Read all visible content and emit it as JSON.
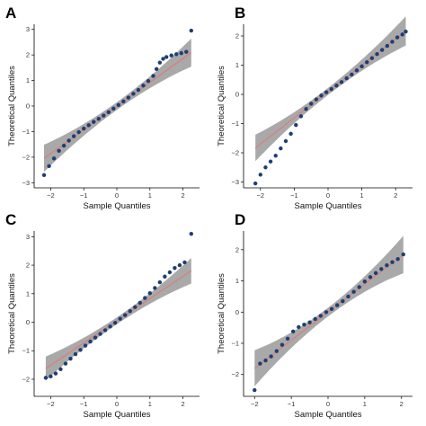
{
  "chart_data": [
    {
      "type": "scatter",
      "panel": "A",
      "xlabel": "Sample Quantiles",
      "ylabel": "Theoretical Quantiles",
      "xlim": [
        -2.5,
        2.5
      ],
      "ylim": [
        -3.2,
        3.2
      ],
      "xticks": [
        -2,
        -1,
        0,
        1,
        2
      ],
      "yticks": [
        -3,
        -2,
        -1,
        0,
        1,
        2,
        3
      ],
      "grid": false,
      "point_color": "#1c3f73",
      "line_color": "#e07a7a",
      "band_color": "#8c8c8c",
      "ref_line": {
        "slope": 0.93,
        "intercept": 0.0
      },
      "band_halfwidth": {
        "center": 0.15,
        "tails": 0.55
      },
      "x": [
        -2.2,
        -2.05,
        -1.9,
        -1.75,
        -1.6,
        -1.45,
        -1.3,
        -1.15,
        -1.0,
        -0.85,
        -0.7,
        -0.55,
        -0.4,
        -0.25,
        -0.1,
        0.05,
        0.2,
        0.35,
        0.5,
        0.65,
        0.8,
        0.95,
        1.1,
        1.2,
        1.3,
        1.4,
        1.5,
        1.65,
        1.8,
        1.95,
        2.1,
        2.25
      ],
      "y": [
        -2.7,
        -2.35,
        -2.05,
        -1.75,
        -1.55,
        -1.35,
        -1.18,
        -1.02,
        -0.88,
        -0.75,
        -0.62,
        -0.5,
        -0.37,
        -0.24,
        -0.1,
        0.04,
        0.18,
        0.33,
        0.48,
        0.63,
        0.8,
        0.98,
        1.18,
        1.45,
        1.7,
        1.85,
        1.92,
        1.98,
        2.03,
        2.07,
        2.12,
        2.95
      ]
    },
    {
      "type": "scatter",
      "panel": "B",
      "xlabel": "Sample Quantiles",
      "ylabel": "Theoretical Quantiles",
      "xlim": [
        -2.5,
        2.5
      ],
      "ylim": [
        -3.2,
        2.4
      ],
      "xticks": [
        -2,
        -1,
        0,
        1,
        2
      ],
      "yticks": [
        -3,
        -2,
        -1,
        0,
        1,
        2
      ],
      "grid": false,
      "point_color": "#1c3f73",
      "line_color": "#e07a7a",
      "band_color": "#8c8c8c",
      "ref_line": {
        "slope": 0.9,
        "intercept": 0.1
      },
      "band_halfwidth": {
        "center": 0.12,
        "tails": 0.5
      },
      "x": [
        -2.15,
        -2.0,
        -1.85,
        -1.7,
        -1.55,
        -1.4,
        -1.25,
        -1.1,
        -0.95,
        -0.8,
        -0.65,
        -0.5,
        -0.35,
        -0.2,
        -0.05,
        0.1,
        0.25,
        0.4,
        0.55,
        0.7,
        0.85,
        1.0,
        1.15,
        1.3,
        1.45,
        1.6,
        1.75,
        1.9,
        2.05,
        2.2,
        2.3
      ],
      "y": [
        -3.05,
        -2.75,
        -2.5,
        -2.3,
        -2.1,
        -1.85,
        -1.6,
        -1.35,
        -1.05,
        -0.75,
        -0.5,
        -0.32,
        -0.17,
        -0.04,
        0.07,
        0.18,
        0.3,
        0.42,
        0.55,
        0.68,
        0.82,
        0.96,
        1.1,
        1.24,
        1.38,
        1.52,
        1.66,
        1.8,
        1.95,
        2.05,
        2.15
      ]
    },
    {
      "type": "scatter",
      "panel": "C",
      "xlabel": "Sample Quantiles",
      "ylabel": "Theoretical Quantiles",
      "xlim": [
        -2.5,
        2.5
      ],
      "ylim": [
        -2.6,
        3.2
      ],
      "xticks": [
        -2,
        -1,
        0,
        1,
        2
      ],
      "yticks": [
        -2,
        -1,
        0,
        1,
        2,
        3
      ],
      "grid": false,
      "point_color": "#1c3f73",
      "line_color": "#e07a7a",
      "band_color": "#8c8c8c",
      "ref_line": {
        "slope": 0.78,
        "intercept": 0.05
      },
      "band_halfwidth": {
        "center": 0.12,
        "tails": 0.45
      },
      "x": [
        -2.15,
        -2.0,
        -1.85,
        -1.7,
        -1.55,
        -1.4,
        -1.25,
        -1.1,
        -0.95,
        -0.8,
        -0.65,
        -0.5,
        -0.35,
        -0.2,
        -0.05,
        0.1,
        0.25,
        0.4,
        0.55,
        0.7,
        0.85,
        1.0,
        1.15,
        1.3,
        1.45,
        1.6,
        1.75,
        1.9,
        2.05,
        2.25
      ],
      "y": [
        -1.95,
        -1.9,
        -1.8,
        -1.65,
        -1.45,
        -1.28,
        -1.12,
        -0.97,
        -0.82,
        -0.68,
        -0.54,
        -0.41,
        -0.28,
        -0.15,
        -0.02,
        0.12,
        0.25,
        0.39,
        0.53,
        0.68,
        0.85,
        1.02,
        1.2,
        1.4,
        1.6,
        1.75,
        1.9,
        2.0,
        2.1,
        3.1
      ]
    },
    {
      "type": "scatter",
      "panel": "D",
      "xlabel": "Sample Quantiles",
      "ylabel": "Theoretical Quantiles",
      "xlim": [
        -2.3,
        2.3
      ],
      "ylim": [
        -2.7,
        2.6
      ],
      "xticks": [
        -2,
        -1,
        0,
        1,
        2
      ],
      "yticks": [
        -2,
        -1,
        0,
        1,
        2
      ],
      "grid": false,
      "point_color": "#1c3f73",
      "line_color": "#e07a7a",
      "band_color": "#8c8c8c",
      "ref_line": {
        "slope": 0.9,
        "intercept": 0.0
      },
      "band_halfwidth": {
        "center": 0.14,
        "tails": 0.6
      },
      "x": [
        -2.0,
        -1.85,
        -1.7,
        -1.55,
        -1.4,
        -1.25,
        -1.1,
        -0.95,
        -0.8,
        -0.65,
        -0.5,
        -0.35,
        -0.2,
        -0.05,
        0.1,
        0.25,
        0.4,
        0.55,
        0.7,
        0.85,
        1.0,
        1.15,
        1.3,
        1.45,
        1.6,
        1.75,
        1.9,
        2.05
      ],
      "y": [
        -2.5,
        -1.65,
        -1.55,
        -1.42,
        -1.25,
        -1.05,
        -0.85,
        -0.62,
        -0.48,
        -0.4,
        -0.33,
        -0.22,
        -0.12,
        0.0,
        0.1,
        0.22,
        0.35,
        0.5,
        0.65,
        0.8,
        0.98,
        1.12,
        1.25,
        1.38,
        1.5,
        1.6,
        1.7,
        1.85
      ]
    }
  ]
}
